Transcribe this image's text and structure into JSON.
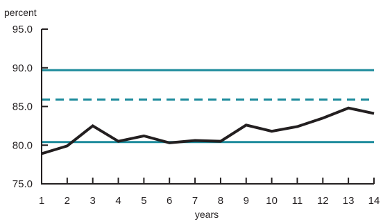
{
  "chart_data": {
    "type": "line",
    "ylabel": "percent",
    "xlabel": "years",
    "x": [
      1,
      2,
      3,
      4,
      5,
      6,
      7,
      8,
      9,
      10,
      11,
      12,
      13,
      14
    ],
    "series": [
      {
        "values": [
          78.9,
          79.9,
          82.5,
          80.5,
          81.2,
          80.3,
          80.6,
          80.5,
          82.6,
          81.8,
          82.4,
          83.5,
          84.8,
          84.1
        ]
      }
    ],
    "reference_lines": [
      {
        "y": 89.7,
        "style": "solid"
      },
      {
        "y": 85.9,
        "style": "dashed"
      },
      {
        "y": 80.4,
        "style": "solid"
      }
    ],
    "xlim": [
      1,
      14
    ],
    "ylim": [
      75,
      95
    ],
    "xticks": [
      "1",
      "2",
      "3",
      "4",
      "5",
      "6",
      "7",
      "8",
      "9",
      "10",
      "11",
      "12",
      "13",
      "14"
    ],
    "yticks": [
      "75.0",
      "80.0",
      "85.0",
      "90.0",
      "95.0"
    ],
    "grid": false,
    "colors": {
      "series": "#231f20",
      "reference": "#1b8a9b",
      "axis": "#231f20"
    }
  }
}
